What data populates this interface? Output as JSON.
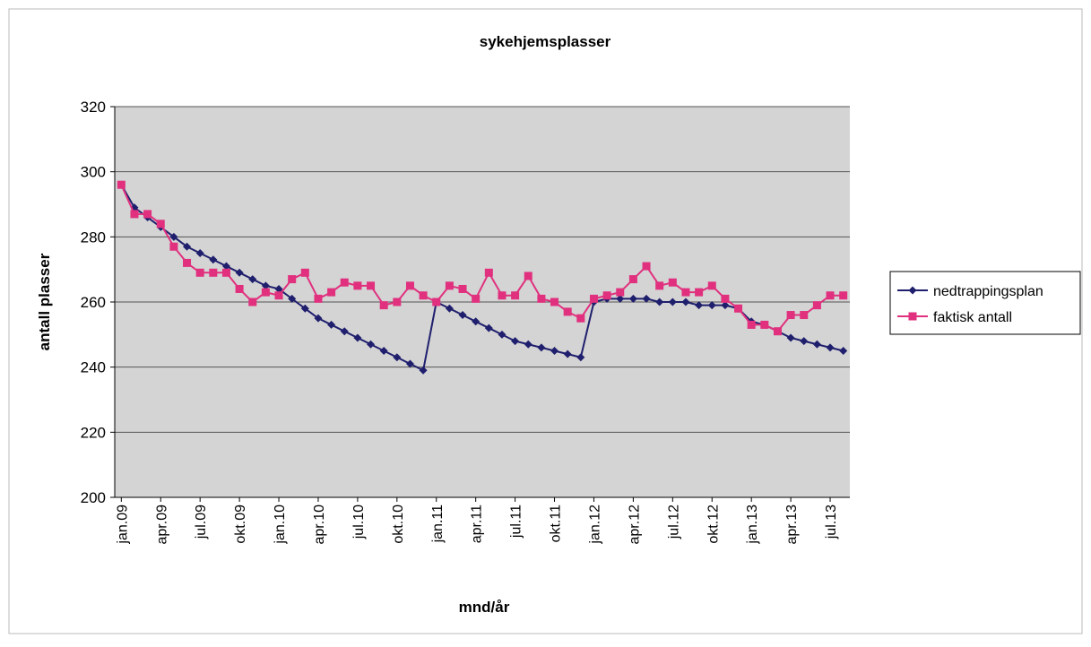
{
  "chart_data": {
    "type": "line",
    "title": "sykehjemsplasser",
    "x_label": "mnd/år",
    "y_label": "antall plasser",
    "categories": [
      "jan.09",
      null,
      null,
      "apr.09",
      null,
      null,
      "jul.09",
      null,
      null,
      "okt.09",
      null,
      null,
      "jan.10",
      null,
      null,
      "apr.10",
      null,
      null,
      "jul.10",
      null,
      null,
      "okt.10",
      null,
      null,
      "jan.11",
      null,
      null,
      "apr.11",
      null,
      null,
      "jul.11",
      null,
      null,
      "okt.11",
      null,
      null,
      "jan.12",
      null,
      null,
      "apr.12",
      null,
      null,
      "jul.12",
      null,
      null,
      "okt.12",
      null,
      null,
      "jan.13",
      null,
      null,
      "apr.13",
      null,
      null,
      "jul.13",
      null
    ],
    "series": [
      {
        "name": "nedtrappingsplan",
        "color": "#1f1f6e",
        "marker": "diamond",
        "values": [
          296,
          289,
          286,
          283,
          280,
          277,
          275,
          273,
          271,
          269,
          267,
          265,
          264,
          261,
          258,
          255,
          253,
          251,
          249,
          247,
          245,
          243,
          241,
          239,
          260,
          258,
          256,
          254,
          252,
          250,
          248,
          247,
          246,
          245,
          244,
          243,
          260,
          261,
          261,
          261,
          261,
          260,
          260,
          260,
          259,
          259,
          259,
          258,
          254,
          253,
          251,
          249,
          248,
          247,
          246,
          245
        ]
      },
      {
        "name": "faktisk antall",
        "color": "#e0307e",
        "marker": "square",
        "values": [
          296,
          287,
          287,
          284,
          277,
          272,
          269,
          269,
          269,
          264,
          260,
          263,
          262,
          267,
          269,
          261,
          263,
          266,
          265,
          265,
          259,
          260,
          265,
          262,
          260,
          265,
          264,
          261,
          269,
          262,
          262,
          268,
          261,
          260,
          257,
          255,
          261,
          262,
          263,
          267,
          271,
          265,
          266,
          263,
          263,
          265,
          261,
          258,
          253,
          253,
          251,
          256,
          256,
          259,
          262,
          262
        ]
      }
    ],
    "ylim": [
      200,
      320
    ],
    "yticks": [
      200,
      220,
      240,
      260,
      280,
      300,
      320
    ],
    "grid": true,
    "legend": "right"
  }
}
